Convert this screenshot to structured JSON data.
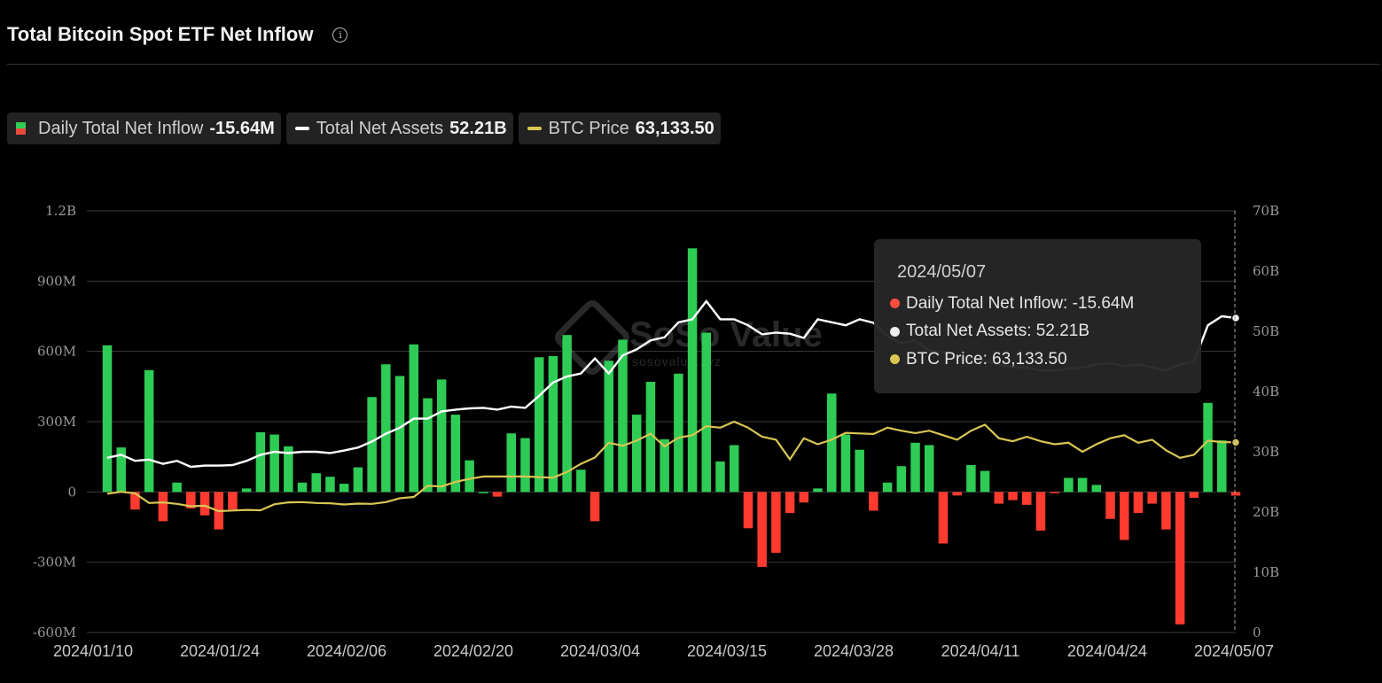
{
  "title": "Total Bitcoin Spot ETF Net Inflow",
  "legend": {
    "inflow": {
      "label": "Daily Total Net Inflow",
      "value": "-15.64M"
    },
    "assets": {
      "label": "Total Net Assets",
      "value": "52.21B"
    },
    "price": {
      "label": "BTC Price",
      "value": "63,133.50"
    }
  },
  "tooltip": {
    "date": "2024/05/07",
    "inflow": "Daily Total Net Inflow: -15.64M",
    "assets": "Total Net Assets: 52.21B",
    "price": "BTC Price: 63,133.50"
  },
  "watermark": {
    "name": "SoSo Value",
    "url": "sosovalue.xyz"
  },
  "colors": {
    "up": "#2ecc55",
    "down": "#ff3b30",
    "assets": "#ffffff",
    "price": "#d9c653",
    "tooltip_inflow": "#ff4d3d"
  },
  "chart_data": {
    "type": "bar",
    "x_ticks": [
      "2024/01/10",
      "2024/01/24",
      "2024/02/06",
      "2024/02/20",
      "2024/03/04",
      "2024/03/15",
      "2024/03/28",
      "2024/04/11",
      "2024/04/24",
      "2024/05/07"
    ],
    "y_left_ticks": [
      "1.2B",
      "900M",
      "600M",
      "300M",
      "0",
      "-300M",
      "-600M"
    ],
    "y_right_ticks": [
      "70B",
      "60B",
      "50B",
      "40B",
      "30B",
      "20B",
      "10B",
      "0"
    ],
    "y_left_range": [
      -600,
      1200
    ],
    "y_right_range": [
      0,
      70
    ],
    "series": [
      {
        "name": "Daily Total Net Inflow",
        "unit": "M USD",
        "axis": "left",
        "values": [
          626,
          190,
          -75,
          520,
          -125,
          40,
          -70,
          -100,
          -160,
          -75,
          15,
          255,
          245,
          195,
          40,
          80,
          65,
          35,
          105,
          405,
          545,
          495,
          630,
          400,
          480,
          330,
          135,
          0,
          -20,
          250,
          230,
          575,
          580,
          670,
          95,
          -125,
          560,
          650,
          330,
          470,
          225,
          505,
          1040,
          680,
          130,
          200,
          -155,
          -320,
          -260,
          -90,
          -45,
          15,
          420,
          245,
          180,
          -80,
          40,
          110,
          210,
          200,
          -220,
          -15,
          115,
          90,
          -50,
          -35,
          -55,
          -165,
          -5,
          60,
          60,
          30,
          -115,
          -205,
          -90,
          -50,
          -160,
          -565,
          -25,
          380,
          220,
          -15.64
        ]
      },
      {
        "name": "Total Net Assets",
        "unit": "B USD",
        "axis": "right",
        "values": [
          29.0,
          29.5,
          28.5,
          28.7,
          28.0,
          28.5,
          27.5,
          27.7,
          27.7,
          27.8,
          28.5,
          29.5,
          30.0,
          29.8,
          30.0,
          30.0,
          29.8,
          30.2,
          30.7,
          31.7,
          33.0,
          34.0,
          35.5,
          35.5,
          36.7,
          37.0,
          37.2,
          37.3,
          37.0,
          37.5,
          37.3,
          39.3,
          41.5,
          42.5,
          43.0,
          45.5,
          43.0,
          46.0,
          47.0,
          48.5,
          49.0,
          51.5,
          52.0,
          55.0,
          52.0,
          52.0,
          51.0,
          49.5,
          49.8,
          49.6,
          48.9,
          52.0,
          51.5,
          51.0,
          52.0,
          51.4,
          49.2,
          48.0,
          48.5,
          46.8,
          46.5,
          46.0,
          45.5,
          45.0,
          44.5,
          44.0,
          44.0,
          43.5,
          43.5,
          43.8,
          44.0,
          44.5,
          44.7,
          44.2,
          44.5,
          44.0,
          43.5,
          44.5,
          45.0,
          51.0,
          52.5,
          52.21
        ]
      },
      {
        "name": "BTC Price",
        "unit": "K USD",
        "axis": "right",
        "values": [
          46.1,
          46.7,
          46.2,
          43.0,
          43.2,
          42.7,
          41.9,
          42.1,
          40.3,
          40.5,
          40.7,
          40.6,
          42.6,
          43.2,
          43.3,
          43.0,
          42.9,
          42.5,
          42.8,
          42.7,
          43.3,
          44.6,
          45.0,
          48.7,
          48.5,
          50.0,
          51.0,
          51.8,
          51.8,
          51.8,
          51.8,
          51.6,
          51.4,
          53.3,
          56.0,
          58.1,
          63.0,
          62.0,
          63.7,
          66.0,
          61.8,
          64.7,
          65.5,
          68.5,
          68.0,
          70.0,
          68.0,
          65.0,
          64.0,
          57.5,
          64.5,
          62.5,
          64.0,
          66.3,
          66.1,
          65.9,
          68.0,
          67.0,
          66.2,
          67.0,
          65.5,
          64.0,
          67.0,
          69.0,
          64.5,
          63.5,
          65.0,
          63.5,
          62.5,
          63.0,
          60.0,
          62.5,
          64.5,
          65.5,
          63.0,
          64.0,
          60.5,
          58.0,
          59.0,
          63.7,
          63.2,
          63.1335
        ]
      }
    ]
  }
}
